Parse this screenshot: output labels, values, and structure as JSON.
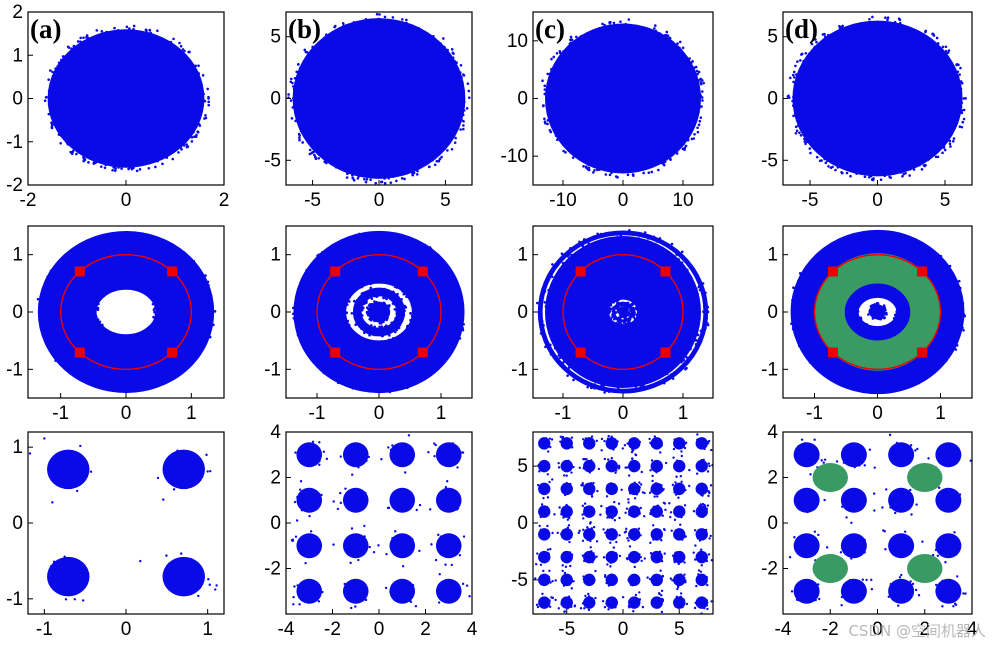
{
  "colors": {
    "points": "#0a0ae6",
    "ring": "#ee0000",
    "marker": "#ee0000",
    "highlight": "#3a9a64"
  },
  "watermark": "CSDN @空间机器人",
  "chart_data": [
    {
      "type": "scatter",
      "panel_label": "(a)",
      "row": 0,
      "col": 0,
      "xlim": [
        -2,
        2
      ],
      "ylim": [
        -2,
        2
      ],
      "xticks": [
        -2,
        0,
        2
      ],
      "yticks": [
        -2,
        -1,
        0,
        1,
        2
      ],
      "blobs": [
        {
          "x": 0,
          "y": 0,
          "r": 1.6,
          "kind": "disk"
        }
      ]
    },
    {
      "type": "scatter",
      "panel_label": "(b)",
      "row": 0,
      "col": 1,
      "xlim": [
        -7,
        7
      ],
      "ylim": [
        -7,
        7
      ],
      "xticks": [
        -5,
        0,
        5
      ],
      "yticks": [
        -5,
        0,
        5
      ],
      "blobs": [
        {
          "x": 0,
          "y": 0,
          "r": 6.5,
          "kind": "disk"
        }
      ]
    },
    {
      "type": "scatter",
      "panel_label": "(c)",
      "row": 0,
      "col": 2,
      "xlim": [
        -15,
        15
      ],
      "ylim": [
        -15,
        15
      ],
      "xticks": [
        -10,
        0,
        10
      ],
      "yticks": [
        -10,
        0,
        10
      ],
      "blobs": [
        {
          "x": 0,
          "y": 0,
          "r": 13,
          "kind": "disk"
        }
      ]
    },
    {
      "type": "scatter",
      "panel_label": "(d)",
      "row": 0,
      "col": 3,
      "xlim": [
        -7,
        7
      ],
      "ylim": [
        -7,
        7
      ],
      "xticks": [
        -5,
        0,
        5
      ],
      "yticks": [
        -5,
        0,
        5
      ],
      "blobs": [
        {
          "x": 0,
          "y": 0,
          "r": 6.3,
          "kind": "disk"
        }
      ]
    },
    {
      "type": "scatter",
      "row": 1,
      "col": 0,
      "xlim": [
        -1.5,
        1.5
      ],
      "ylim": [
        -1.5,
        1.5
      ],
      "xticks": [
        -1,
        0,
        1
      ],
      "yticks": [
        -1,
        0,
        1
      ],
      "rings": [
        {
          "r_in": 0.45,
          "r_out": 1.35
        }
      ],
      "circle_r": 1,
      "markers": [
        {
          "x": -0.707,
          "y": 0.707
        },
        {
          "x": 0.707,
          "y": 0.707
        },
        {
          "x": -0.707,
          "y": -0.707
        },
        {
          "x": 0.707,
          "y": -0.707
        }
      ]
    },
    {
      "type": "scatter",
      "row": 1,
      "col": 1,
      "xlim": [
        -1.5,
        1.5
      ],
      "ylim": [
        -1.5,
        1.5
      ],
      "xticks": [
        -1,
        0,
        1
      ],
      "yticks": [
        -1,
        0,
        1
      ],
      "rings": [
        {
          "r_in": 0.0,
          "r_out": 0.18
        },
        {
          "r_in": 0.28,
          "r_out": 0.42
        },
        {
          "r_in": 0.53,
          "r_out": 1.38
        }
      ],
      "circle_r": 1,
      "markers": [
        {
          "x": -0.707,
          "y": 0.707
        },
        {
          "x": 0.707,
          "y": 0.707
        },
        {
          "x": -0.707,
          "y": -0.707
        },
        {
          "x": 0.707,
          "y": -0.707
        }
      ]
    },
    {
      "type": "scatter",
      "row": 1,
      "col": 2,
      "xlim": [
        -1.5,
        1.5
      ],
      "ylim": [
        -1.5,
        1.5
      ],
      "xticks": [
        -1,
        0,
        1
      ],
      "yticks": [
        -1,
        0,
        1
      ],
      "rings": [
        {
          "r_in": 0.0,
          "r_out": 0.07
        },
        {
          "r_in": 0.13,
          "r_out": 0.18
        },
        {
          "r_in": 0.24,
          "r_out": 1.3
        },
        {
          "r_in": 1.34,
          "r_out": 1.42
        }
      ],
      "circle_r": 1,
      "markers": [
        {
          "x": -0.707,
          "y": 0.707
        },
        {
          "x": 0.707,
          "y": 0.707
        },
        {
          "x": -0.707,
          "y": -0.707
        },
        {
          "x": 0.707,
          "y": -0.707
        }
      ]
    },
    {
      "type": "scatter",
      "row": 1,
      "col": 3,
      "xlim": [
        -1.5,
        1.5
      ],
      "ylim": [
        -1.5,
        1.5
      ],
      "xticks": [
        -1,
        0,
        1
      ],
      "yticks": [
        -1,
        0,
        1
      ],
      "rings": [
        {
          "r_in": 0.0,
          "r_out": 0.13
        },
        {
          "r_in": 0.3,
          "r_out": 1.38
        }
      ],
      "green_ring": {
        "r_in": 0.52,
        "r_out": 1.0
      },
      "circle_r": 1,
      "markers": [
        {
          "x": -0.707,
          "y": 0.707
        },
        {
          "x": 0.707,
          "y": 0.707
        },
        {
          "x": -0.707,
          "y": -0.707
        },
        {
          "x": 0.707,
          "y": -0.707
        }
      ]
    },
    {
      "type": "scatter",
      "row": 2,
      "col": 0,
      "xlim": [
        -1.2,
        1.2
      ],
      "ylim": [
        -1.2,
        1.2
      ],
      "xticks": [
        -1,
        0,
        1
      ],
      "yticks": [
        -1,
        0,
        1
      ],
      "grid_centers": [
        -0.707,
        0.707
      ],
      "blob_r": 0.26
    },
    {
      "type": "scatter",
      "row": 2,
      "col": 1,
      "xlim": [
        -4,
        4
      ],
      "ylim": [
        -4,
        4
      ],
      "xticks": [
        -4,
        -2,
        0,
        2,
        4
      ],
      "yticks": [
        -2,
        0,
        2,
        4
      ],
      "grid_centers": [
        -3,
        -1,
        1,
        3
      ],
      "blob_r": 0.55
    },
    {
      "type": "scatter",
      "row": 2,
      "col": 2,
      "xlim": [
        -8,
        8
      ],
      "ylim": [
        -8,
        8
      ],
      "xticks": [
        -5,
        0,
        5
      ],
      "yticks": [
        -5,
        0,
        5
      ],
      "grid_centers": [
        -7,
        -5,
        -3,
        -1,
        1,
        3,
        5,
        7
      ],
      "blob_r": 0.55
    },
    {
      "type": "scatter",
      "row": 2,
      "col": 3,
      "xlim": [
        -4,
        4
      ],
      "ylim": [
        -4,
        4
      ],
      "xticks": [
        -4,
        -2,
        0,
        2,
        4
      ],
      "yticks": [
        -2,
        0,
        2,
        4
      ],
      "grid_centers": [
        -3,
        -1,
        1,
        3
      ],
      "blob_r": 0.55,
      "green_blobs": [
        {
          "x": -2,
          "y": 2
        },
        {
          "x": 2,
          "y": 2
        },
        {
          "x": -2,
          "y": -2
        },
        {
          "x": 2,
          "y": -2
        }
      ],
      "green_r": 0.75
    }
  ]
}
